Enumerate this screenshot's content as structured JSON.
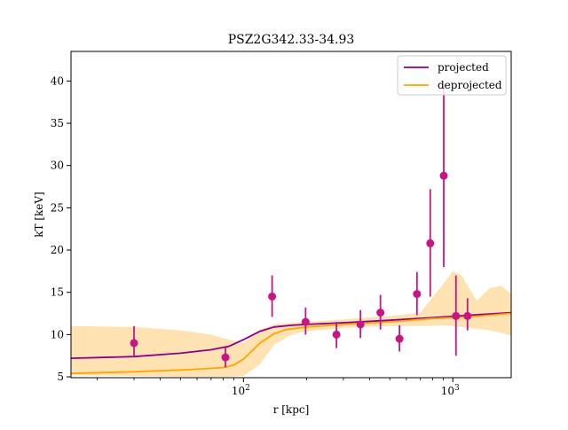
{
  "chart_data": {
    "type": "scatter",
    "title": "PSZ2G342.33-34.93",
    "xlabel": "r [kpc]",
    "ylabel": "kT [keV]",
    "x_scale": "log",
    "xlim": [
      15,
      1900
    ],
    "ylim": [
      4.9,
      43.5
    ],
    "x_ticks": [
      {
        "value": 100,
        "label": "10",
        "exp": "2"
      },
      {
        "value": 1000,
        "label": "10",
        "exp": "3"
      }
    ],
    "x_minor_ticks": [
      20,
      30,
      40,
      50,
      60,
      70,
      80,
      90,
      200,
      300,
      400,
      500,
      600,
      700,
      800,
      900
    ],
    "y_ticks": [
      {
        "value": 5,
        "label": "5"
      },
      {
        "value": 10,
        "label": "10"
      },
      {
        "value": 15,
        "label": "15"
      },
      {
        "value": 20,
        "label": "20"
      },
      {
        "value": 25,
        "label": "25"
      },
      {
        "value": 30,
        "label": "30"
      },
      {
        "value": 35,
        "label": "35"
      },
      {
        "value": 40,
        "label": "40"
      }
    ],
    "grid": false,
    "legend_position": "top-right",
    "colors": {
      "projected": "#8b008b",
      "deprojected": "#ffa500",
      "band": "#ffdfa8",
      "points": "#c71585"
    },
    "points": {
      "x": [
        30,
        82,
        137,
        198,
        278,
        362,
        451,
        556,
        674,
        780,
        905,
        1035,
        1175
      ],
      "y": [
        9.0,
        7.3,
        14.5,
        11.5,
        10.0,
        11.2,
        12.6,
        9.5,
        14.8,
        20.8,
        28.8,
        12.2,
        12.2
      ],
      "yerr_low": [
        1.5,
        1.2,
        2.4,
        1.5,
        1.6,
        1.6,
        2.0,
        1.5,
        2.5,
        6.3,
        10.8,
        4.7,
        1.7
      ],
      "yerr_high": [
        2.0,
        1.2,
        2.5,
        1.7,
        1.5,
        1.7,
        2.1,
        1.6,
        2.6,
        6.4,
        10.8,
        4.8,
        2.1
      ]
    },
    "series": [
      {
        "name": "projected",
        "x": [
          15,
          30,
          50,
          70,
          85,
          100,
          120,
          140,
          170,
          200,
          300,
          500,
          800,
          1200,
          1900
        ],
        "y": [
          7.2,
          7.4,
          7.8,
          8.2,
          8.6,
          9.4,
          10.4,
          10.9,
          11.1,
          11.2,
          11.4,
          11.7,
          12.0,
          12.3,
          12.6
        ]
      },
      {
        "name": "deprojected",
        "x": [
          15,
          30,
          50,
          70,
          80,
          90,
          100,
          120,
          140,
          160,
          200,
          300,
          500,
          800,
          1200,
          1900
        ],
        "y": [
          5.4,
          5.6,
          5.8,
          6.0,
          6.1,
          6.4,
          7.1,
          9.0,
          10.1,
          10.6,
          10.9,
          11.2,
          11.5,
          11.9,
          12.1,
          12.5
        ]
      }
    ],
    "band": {
      "x": [
        15,
        30,
        50,
        70,
        85,
        100,
        120,
        140,
        170,
        200,
        300,
        500,
        700,
        900,
        1000,
        1100,
        1300,
        1500,
        1700,
        1900
      ],
      "y_low": [
        5.2,
        5.1,
        5.0,
        5.0,
        5.0,
        5.1,
        6.5,
        8.8,
        10.0,
        10.4,
        10.8,
        11.0,
        11.0,
        11.1,
        11.0,
        10.9,
        10.7,
        10.5,
        10.2,
        9.9
      ],
      "y_high": [
        11.0,
        10.9,
        10.5,
        10.0,
        9.4,
        9.0,
        10.6,
        11.2,
        11.4,
        11.5,
        11.8,
        12.2,
        12.6,
        16.0,
        17.5,
        17.0,
        14.0,
        15.5,
        15.8,
        14.8
      ]
    }
  }
}
